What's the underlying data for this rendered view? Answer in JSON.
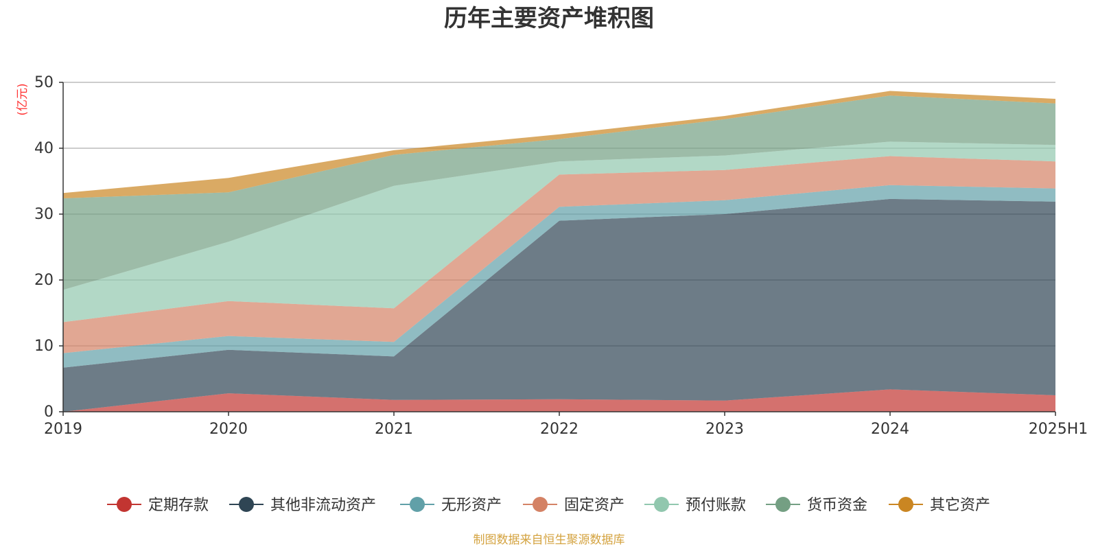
{
  "chart_data": {
    "type": "area",
    "stacked": true,
    "title": "历年主要资产堆积图",
    "unit_label": "(亿元)",
    "ylim": [
      0,
      50
    ],
    "y_ticks": [
      0,
      10,
      20,
      30,
      40,
      50
    ],
    "categories": [
      "2019",
      "2020",
      "2021",
      "2022",
      "2023",
      "2024",
      "2025H1"
    ],
    "series": [
      {
        "name": "定期存款",
        "color": "#c23531",
        "values": [
          0.0,
          2.8,
          1.8,
          1.9,
          1.7,
          3.4,
          2.5
        ]
      },
      {
        "name": "其他非流动资产",
        "color": "#2f4554",
        "values": [
          6.7,
          6.6,
          6.6,
          27.1,
          28.3,
          28.9,
          29.4
        ]
      },
      {
        "name": "无形资产",
        "color": "#61a0a8",
        "values": [
          2.2,
          2.1,
          2.2,
          2.1,
          2.1,
          2.1,
          2.0
        ]
      },
      {
        "name": "固定资产",
        "color": "#d48265",
        "values": [
          4.7,
          5.3,
          5.1,
          4.9,
          4.6,
          4.4,
          4.1
        ]
      },
      {
        "name": "预付账款",
        "color": "#91c7ae",
        "values": [
          4.9,
          9.0,
          18.6,
          2.0,
          2.2,
          2.2,
          2.5
        ]
      },
      {
        "name": "货币资金",
        "color": "#749f83",
        "values": [
          13.9,
          7.5,
          4.7,
          3.4,
          5.5,
          7.0,
          6.3
        ]
      },
      {
        "name": "其它资产",
        "color": "#ca8622",
        "values": [
          0.8,
          2.2,
          0.7,
          0.7,
          0.5,
          0.7,
          0.7
        ]
      }
    ],
    "legend_position": "bottom",
    "source": "制图数据来自恒生聚源数据库"
  }
}
